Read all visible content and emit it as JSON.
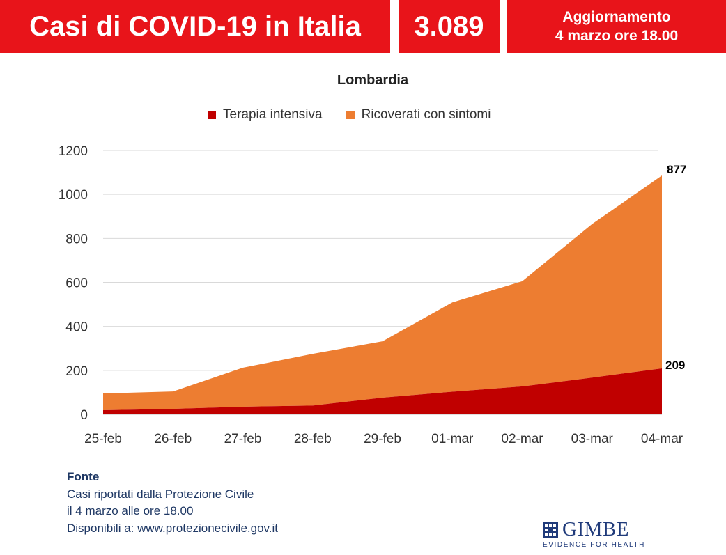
{
  "header": {
    "title": "Casi di COVID-19 in Italia",
    "total": "3.089",
    "update_line1": "Aggiornamento",
    "update_line2": "4 marzo ore 18.00"
  },
  "colors": {
    "banner": "#e8141a",
    "terapia": "#c00000",
    "ricoverati": "#ed7d31"
  },
  "chart_data": {
    "type": "area",
    "stacked": true,
    "title": "Lombardia",
    "categories": [
      "25-feb",
      "26-feb",
      "27-feb",
      "28-feb",
      "29-feb",
      "01-mar",
      "02-mar",
      "03-mar",
      "04-mar"
    ],
    "series": [
      {
        "name": "Terapia intensiva",
        "values": [
          19,
          25,
          35,
          40,
          76,
          103,
          127,
          167,
          209
        ]
      },
      {
        "name": "Ricoverati con sintomi",
        "values": [
          76,
          79,
          177,
          235,
          256,
          406,
          478,
          698,
          877
        ]
      }
    ],
    "yticks": [
      "0",
      "200",
      "400",
      "600",
      "800",
      "1000",
      "1200"
    ],
    "ylim": [
      0,
      1200
    ],
    "grid": true,
    "legend_position": "top",
    "data_labels": [
      "877",
      "209"
    ]
  },
  "source": {
    "heading": "Fonte",
    "line1": "Casi riportati dalla Protezione Civile",
    "line2": "il 4 marzo alle ore 18.00",
    "line3": "Disponibili a: www.protezionecivile.gov.it"
  },
  "logo": {
    "name": "GIMBE",
    "tagline": "EVIDENCE FOR HEALTH"
  }
}
